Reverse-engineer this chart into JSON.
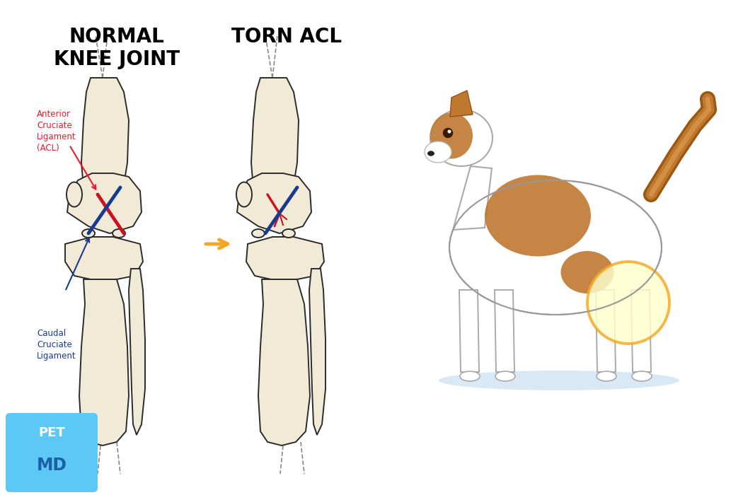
{
  "title_left": "NORMAL\nKNEE JOINT",
  "title_right": "TORN ACL",
  "title_fontsize": 20,
  "title_fontweight": "bold",
  "background_color": "#ffffff",
  "acl_label": "Anterior\nCruciate\nLigament\n(ACL)",
  "acl_label_color": "#e8192c",
  "ccl_label": "Caudal\nCruciate\nLigament",
  "ccl_label_color": "#1a3a8f",
  "arrow_color": "#f5a623",
  "bone_fill": "#f0ead6",
  "bone_outline": "#2b2b2b",
  "acl_color": "#cc1122",
  "ccl_color": "#1a3a8f",
  "petmd_bg": "#5bc8f5",
  "petmd_text": "#1a5fa8",
  "petmd_text_light": "#ffffff",
  "highlight_circle_color": "#f5a623",
  "highlight_circle_fill": "#ffffcc"
}
